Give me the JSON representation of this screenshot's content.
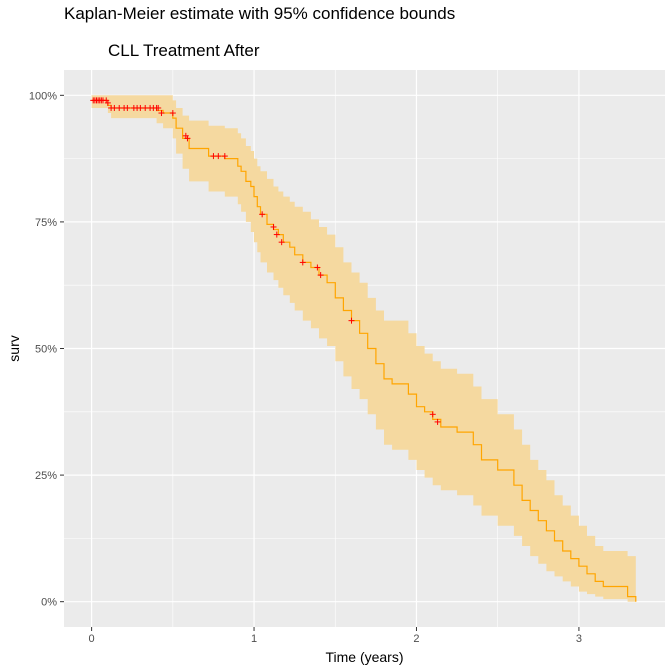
{
  "chart_data": {
    "type": "line",
    "title": "Kaplan-Meier estimate with 95% confidence bounds",
    "subtitle": "CLL Treatment After",
    "xlabel": "Time (years)",
    "ylabel": "surv",
    "xlim": [
      -0.17,
      3.53
    ],
    "ylim": [
      -0.05,
      1.05
    ],
    "x_ticks": [
      0,
      1,
      2,
      3
    ],
    "x_tick_labels": [
      "0",
      "1",
      "2",
      "3"
    ],
    "y_ticks": [
      0,
      0.25,
      0.5,
      0.75,
      1.0
    ],
    "y_tick_labels": [
      "0%",
      "25%",
      "50%",
      "75%",
      "100%"
    ],
    "grid": true,
    "colors": {
      "line": "#FFA500",
      "band": "#F5D9A0",
      "censor": "#FF0000",
      "panel": "#EBEBEB",
      "grid": "#FFFFFF"
    },
    "series": [
      {
        "x": [
          0,
          0.1,
          0.12,
          0.4,
          0.44,
          0.5,
          0.52,
          0.56,
          0.6,
          0.72,
          0.82,
          0.9,
          0.92,
          0.95,
          0.98,
          1.0,
          1.02,
          1.04,
          1.08,
          1.12,
          1.15,
          1.18,
          1.22,
          1.25,
          1.3,
          1.35,
          1.4,
          1.45,
          1.5,
          1.55,
          1.6,
          1.65,
          1.7,
          1.75,
          1.8,
          1.85,
          1.95,
          2.0,
          2.05,
          2.1,
          2.15,
          2.25,
          2.35,
          2.4,
          2.5,
          2.6,
          2.65,
          2.7,
          2.75,
          2.8,
          2.85,
          2.9,
          2.95,
          3.0,
          3.05,
          3.1,
          3.15,
          3.3,
          3.35
        ],
        "y": [
          0.99,
          0.98,
          0.975,
          0.97,
          0.965,
          0.955,
          0.935,
          0.915,
          0.895,
          0.88,
          0.875,
          0.86,
          0.85,
          0.83,
          0.82,
          0.8,
          0.78,
          0.765,
          0.745,
          0.735,
          0.725,
          0.71,
          0.7,
          0.685,
          0.67,
          0.66,
          0.645,
          0.63,
          0.6,
          0.575,
          0.555,
          0.53,
          0.5,
          0.47,
          0.44,
          0.43,
          0.41,
          0.385,
          0.375,
          0.36,
          0.345,
          0.335,
          0.31,
          0.28,
          0.26,
          0.23,
          0.2,
          0.18,
          0.16,
          0.14,
          0.12,
          0.1,
          0.085,
          0.07,
          0.055,
          0.04,
          0.03,
          0.01,
          0.0
        ],
        "lower": [
          0.975,
          0.965,
          0.955,
          0.945,
          0.935,
          0.915,
          0.885,
          0.855,
          0.83,
          0.81,
          0.8,
          0.785,
          0.77,
          0.75,
          0.73,
          0.71,
          0.69,
          0.67,
          0.65,
          0.635,
          0.62,
          0.605,
          0.59,
          0.575,
          0.555,
          0.54,
          0.52,
          0.505,
          0.475,
          0.445,
          0.42,
          0.4,
          0.37,
          0.34,
          0.31,
          0.3,
          0.28,
          0.26,
          0.245,
          0.23,
          0.22,
          0.21,
          0.19,
          0.17,
          0.15,
          0.13,
          0.11,
          0.09,
          0.075,
          0.06,
          0.05,
          0.04,
          0.03,
          0.02,
          0.015,
          0.01,
          0.005,
          0.0,
          0.0
        ],
        "upper": [
          1.0,
          1.0,
          1.0,
          1.0,
          1.0,
          0.99,
          0.975,
          0.96,
          0.95,
          0.94,
          0.935,
          0.925,
          0.915,
          0.9,
          0.89,
          0.875,
          0.86,
          0.85,
          0.835,
          0.82,
          0.81,
          0.8,
          0.79,
          0.78,
          0.77,
          0.755,
          0.74,
          0.725,
          0.7,
          0.67,
          0.65,
          0.63,
          0.6,
          0.575,
          0.555,
          0.555,
          0.53,
          0.505,
          0.49,
          0.475,
          0.46,
          0.45,
          0.425,
          0.4,
          0.37,
          0.34,
          0.31,
          0.28,
          0.26,
          0.24,
          0.21,
          0.19,
          0.17,
          0.15,
          0.13,
          0.11,
          0.1,
          0.09,
          0.02
        ]
      }
    ],
    "censor_marks": {
      "x": [
        0.01,
        0.02,
        0.03,
        0.04,
        0.05,
        0.06,
        0.07,
        0.09,
        0.1,
        0.12,
        0.14,
        0.17,
        0.2,
        0.22,
        0.26,
        0.28,
        0.3,
        0.33,
        0.36,
        0.38,
        0.4,
        0.41,
        0.43,
        0.5,
        0.58,
        0.59,
        0.75,
        0.78,
        0.82,
        1.05,
        1.12,
        1.14,
        1.17,
        1.3,
        1.39,
        1.41,
        1.6,
        2.1,
        2.13
      ],
      "y": [
        0.99,
        0.99,
        0.99,
        0.99,
        0.99,
        0.99,
        0.99,
        0.99,
        0.985,
        0.975,
        0.975,
        0.975,
        0.975,
        0.975,
        0.975,
        0.975,
        0.975,
        0.975,
        0.975,
        0.975,
        0.975,
        0.975,
        0.965,
        0.965,
        0.92,
        0.915,
        0.88,
        0.88,
        0.88,
        0.765,
        0.74,
        0.725,
        0.71,
        0.67,
        0.66,
        0.645,
        0.555,
        0.37,
        0.355
      ]
    }
  }
}
